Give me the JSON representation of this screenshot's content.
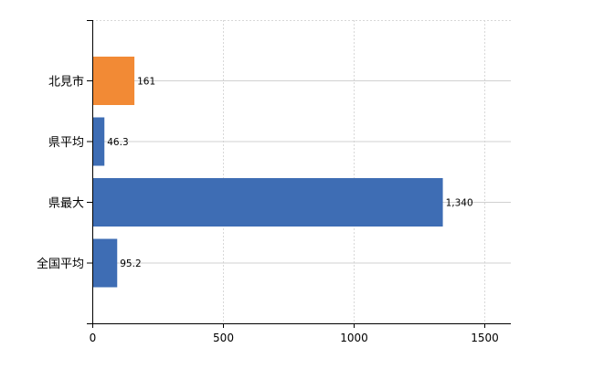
{
  "chart_data": {
    "type": "bar",
    "orientation": "horizontal",
    "categories": [
      "北見市",
      "県平均",
      "県最大",
      "全国平均"
    ],
    "values": [
      161,
      46.3,
      1340,
      95.2
    ],
    "data_labels": [
      "161",
      "46.3",
      "1,340",
      "95.2"
    ],
    "colors": [
      "#F28A35",
      "#3E6DB4",
      "#3E6DB4",
      "#3E6DB4"
    ],
    "xlim": [
      0,
      1600
    ],
    "xticks": [
      0,
      500,
      1000,
      1500
    ],
    "xtick_labels": [
      "0",
      "500",
      "1000",
      "1500"
    ],
    "grid": true,
    "title": "",
    "xlabel": "",
    "ylabel": ""
  }
}
